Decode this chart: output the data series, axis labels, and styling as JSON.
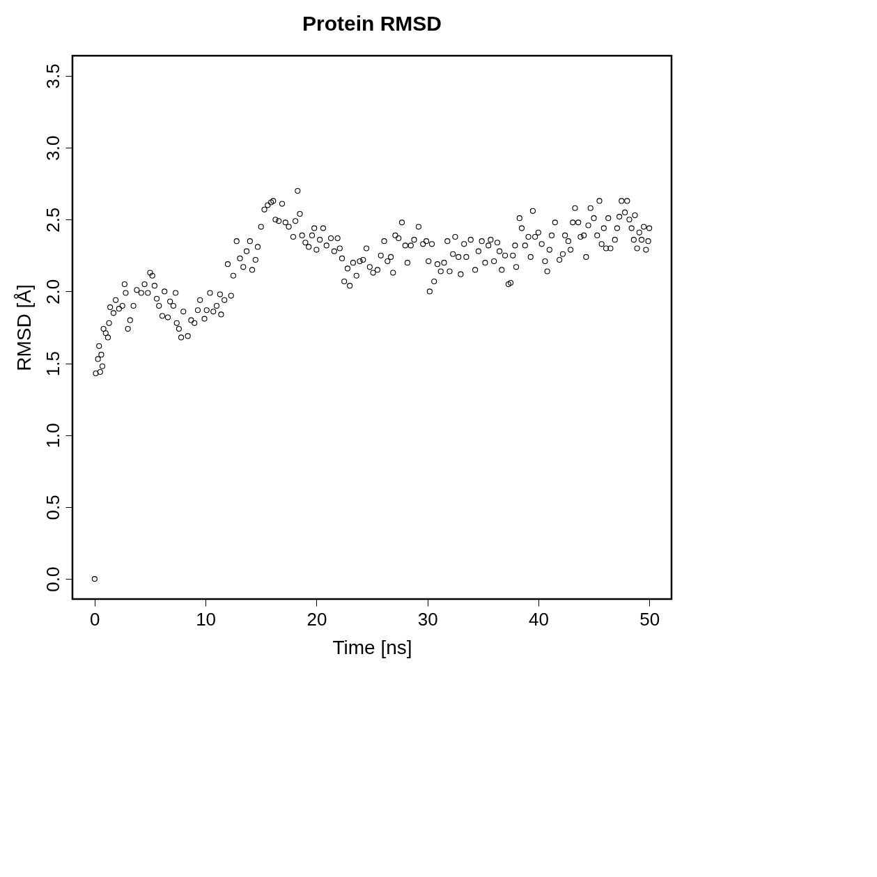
{
  "chart_data": {
    "type": "scatter",
    "title": "Protein RMSD",
    "xlabel": "Time [ns]",
    "ylabel": "RMSD [Å]",
    "xlim": [
      -2,
      52
    ],
    "ylim": [
      -0.14,
      3.64
    ],
    "xticks": [
      0,
      10,
      20,
      30,
      40,
      50
    ],
    "yticks": [
      {
        "value": 0,
        "label": "0.0"
      },
      {
        "value": 0.5,
        "label": "0.5"
      },
      {
        "value": 1,
        "label": "1.0"
      },
      {
        "value": 1.5,
        "label": "1.5"
      },
      {
        "value": 2,
        "label": "2.0"
      },
      {
        "value": 2.5,
        "label": "2.5"
      },
      {
        "value": 3,
        "label": "3.0"
      },
      {
        "value": 3.5,
        "label": "3.5"
      }
    ],
    "grid": false,
    "marker": "circle",
    "x": [
      0,
      0.1,
      0.3,
      0.4,
      0.5,
      0.6,
      0.7,
      0.8,
      1.0,
      1.2,
      1.3,
      1.4,
      1.7,
      1.9,
      2.2,
      2.5,
      2.7,
      2.8,
      3.0,
      3.2,
      3.5,
      3.8,
      4.2,
      4.5,
      4.8,
      5.0,
      5.2,
      5.4,
      5.6,
      5.8,
      6.1,
      6.3,
      6.6,
      6.8,
      7.1,
      7.3,
      7.4,
      7.6,
      7.8,
      8.0,
      8.4,
      8.7,
      9.0,
      9.3,
      9.5,
      9.9,
      10.1,
      10.4,
      10.7,
      11.0,
      11.3,
      11.4,
      11.7,
      12.0,
      12.3,
      12.5,
      12.8,
      13.1,
      13.4,
      13.7,
      14.0,
      14.2,
      14.5,
      14.7,
      15.0,
      15.3,
      15.6,
      15.9,
      16.1,
      16.3,
      16.6,
      16.9,
      17.2,
      17.5,
      17.9,
      18.1,
      18.3,
      18.5,
      18.7,
      19.0,
      19.3,
      19.6,
      19.8,
      20.0,
      20.3,
      20.6,
      20.9,
      21.3,
      21.6,
      21.9,
      22.1,
      22.3,
      22.5,
      22.8,
      23.0,
      23.3,
      23.6,
      23.9,
      24.2,
      24.5,
      24.8,
      25.1,
      25.5,
      25.8,
      26.1,
      26.4,
      26.7,
      26.9,
      27.1,
      27.4,
      27.7,
      28.0,
      28.2,
      28.5,
      28.8,
      29.2,
      29.6,
      29.9,
      30.1,
      30.2,
      30.4,
      30.6,
      30.9,
      31.2,
      31.5,
      31.8,
      32.0,
      32.3,
      32.5,
      32.8,
      33.0,
      33.3,
      33.5,
      33.9,
      34.3,
      34.6,
      34.9,
      35.2,
      35.5,
      35.7,
      36.0,
      36.3,
      36.5,
      36.7,
      37.0,
      37.3,
      37.5,
      37.7,
      37.9,
      38.0,
      38.3,
      38.5,
      38.8,
      39.1,
      39.3,
      39.5,
      39.7,
      40.0,
      40.3,
      40.6,
      40.8,
      41.0,
      41.2,
      41.5,
      41.9,
      42.2,
      42.4,
      42.7,
      42.9,
      43.1,
      43.3,
      43.6,
      43.8,
      44.1,
      44.3,
      44.5,
      44.7,
      45.0,
      45.3,
      45.5,
      45.7,
      45.9,
      46.1,
      46.3,
      46.5,
      46.9,
      47.1,
      47.3,
      47.5,
      47.8,
      48.0,
      48.2,
      48.4,
      48.6,
      48.7,
      48.9,
      49.1,
      49.3,
      49.5,
      49.7,
      49.9,
      50.0
    ],
    "series": [
      {
        "color": "#000000",
        "values": [
          0,
          1.43,
          1.53,
          1.62,
          1.44,
          1.56,
          1.48,
          1.74,
          1.71,
          1.68,
          1.78,
          1.89,
          1.85,
          1.94,
          1.88,
          1.9,
          2.05,
          1.99,
          1.74,
          1.8,
          1.9,
          2.01,
          1.99,
          2.05,
          1.99,
          2.13,
          2.11,
          2.04,
          1.95,
          1.9,
          1.83,
          2.0,
          1.82,
          1.93,
          1.9,
          1.99,
          1.78,
          1.74,
          1.68,
          1.86,
          1.69,
          1.8,
          1.78,
          1.87,
          1.94,
          1.81,
          1.87,
          1.99,
          1.86,
          1.9,
          1.98,
          1.84,
          1.94,
          2.19,
          1.97,
          2.11,
          2.35,
          2.23,
          2.17,
          2.28,
          2.35,
          2.15,
          2.22,
          2.31,
          2.45,
          2.57,
          2.6,
          2.62,
          2.63,
          2.5,
          2.49,
          2.61,
          2.48,
          2.45,
          2.38,
          2.49,
          2.7,
          2.54,
          2.39,
          2.34,
          2.31,
          2.39,
          2.44,
          2.29,
          2.36,
          2.44,
          2.32,
          2.37,
          2.28,
          2.37,
          2.3,
          2.23,
          2.07,
          2.16,
          2.04,
          2.2,
          2.11,
          2.21,
          2.22,
          2.3,
          2.17,
          2.13,
          2.15,
          2.25,
          2.35,
          2.21,
          2.24,
          2.13,
          2.39,
          2.37,
          2.48,
          2.32,
          2.2,
          2.32,
          2.36,
          2.45,
          2.33,
          2.35,
          2.21,
          2.0,
          2.33,
          2.07,
          2.19,
          2.14,
          2.2,
          2.35,
          2.14,
          2.26,
          2.38,
          2.24,
          2.12,
          2.33,
          2.24,
          2.36,
          2.15,
          2.28,
          2.35,
          2.2,
          2.32,
          2.36,
          2.21,
          2.34,
          2.28,
          2.15,
          2.25,
          2.05,
          2.06,
          2.25,
          2.32,
          2.17,
          2.51,
          2.44,
          2.32,
          2.38,
          2.24,
          2.56,
          2.38,
          2.41,
          2.33,
          2.21,
          2.14,
          2.29,
          2.39,
          2.48,
          2.22,
          2.26,
          2.39,
          2.35,
          2.29,
          2.48,
          2.58,
          2.48,
          2.38,
          2.39,
          2.24,
          2.46,
          2.58,
          2.51,
          2.39,
          2.63,
          2.33,
          2.44,
          2.3,
          2.51,
          2.3,
          2.36,
          2.44,
          2.52,
          2.63,
          2.55,
          2.63,
          2.5,
          2.44,
          2.36,
          2.53,
          2.3,
          2.41,
          2.36,
          2.45,
          2.29,
          2.35,
          2.44
        ]
      }
    ]
  }
}
